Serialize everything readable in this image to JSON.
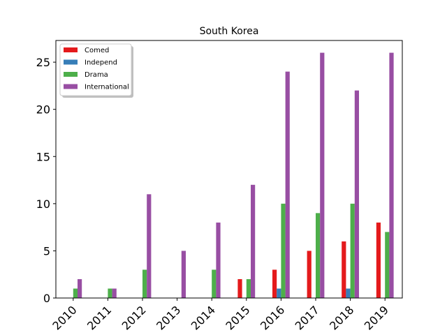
{
  "chart_data": {
    "type": "bar",
    "title": "South Korea",
    "xlabel": "",
    "ylabel": "",
    "categories": [
      "2010",
      "2011",
      "2012",
      "2013",
      "2014",
      "2015",
      "2016",
      "2017",
      "2018",
      "2019"
    ],
    "series": [
      {
        "name": "Comed",
        "color": "#e41a1c",
        "values": [
          0,
          0,
          0,
          0,
          0,
          2,
          3,
          5,
          6,
          8
        ]
      },
      {
        "name": "Independ",
        "color": "#377eb8",
        "values": [
          0,
          0,
          0,
          0,
          0,
          0,
          1,
          0,
          1,
          0
        ]
      },
      {
        "name": "Drama",
        "color": "#4daf4a",
        "values": [
          1,
          1,
          3,
          0,
          3,
          2,
          10,
          9,
          10,
          7
        ]
      },
      {
        "name": "International",
        "color": "#984ea3",
        "values": [
          2,
          1,
          11,
          5,
          8,
          12,
          24,
          26,
          22,
          26
        ]
      }
    ],
    "ylim": [
      0,
      27.3
    ],
    "yticks": [
      0,
      5,
      10,
      15,
      20,
      25
    ],
    "legend_position": "top-left",
    "grid": false
  }
}
